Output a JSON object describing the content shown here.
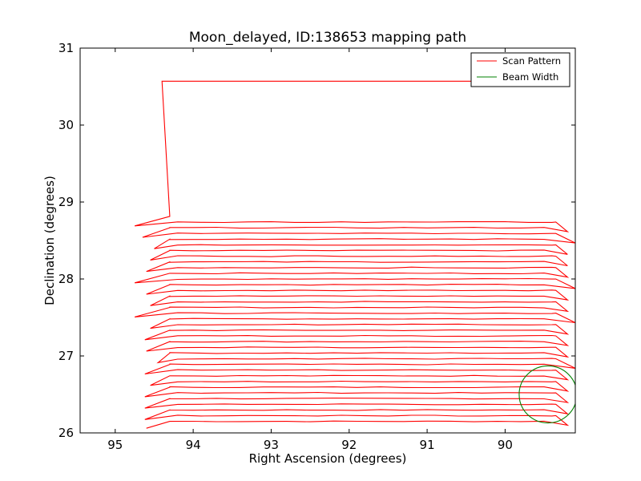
{
  "chart_data": {
    "type": "line",
    "title": "Moon_delayed, ID:138653 mapping path",
    "xlabel": "Right Ascension (degrees)",
    "ylabel": "Declination (degrees)",
    "xlim": [
      95.45,
      89.1
    ],
    "ylim": [
      26,
      31
    ],
    "x_ticks": [
      95,
      94,
      93,
      92,
      91,
      90
    ],
    "y_ticks": [
      26,
      27,
      28,
      29,
      30,
      31
    ],
    "grid": false,
    "legend_position": "top-right",
    "colors": {
      "scan": "#ff0000",
      "beam": "#008000"
    },
    "series": [
      {
        "name": "Scan Pattern",
        "style": "line",
        "left_edge_ra": [
          94.62,
          94.62,
          94.62,
          94.55,
          94.62,
          94.45,
          94.6,
          94.62,
          94.55,
          94.75,
          94.55,
          94.6,
          94.75,
          94.6,
          94.55,
          94.5,
          94.65,
          94.75
        ],
        "right_edge_ra": [
          89.2,
          89.2,
          89.2,
          89.2,
          89.2,
          89.1,
          89.2,
          89.2,
          89.2,
          89.1,
          89.2,
          89.2,
          89.1,
          89.2,
          89.2,
          89.2,
          89.1,
          89.2
        ],
        "start": {
          "ra": 94.6,
          "dec": 26.06
        },
        "end": {
          "ra": 94.4,
          "dec": 30.57
        },
        "row_spacing_dec": 0.148
      },
      {
        "name": "Beam Width",
        "style": "circle",
        "center_ra": 89.45,
        "center_dec": 26.5,
        "radius_deg": 0.37
      }
    ]
  }
}
